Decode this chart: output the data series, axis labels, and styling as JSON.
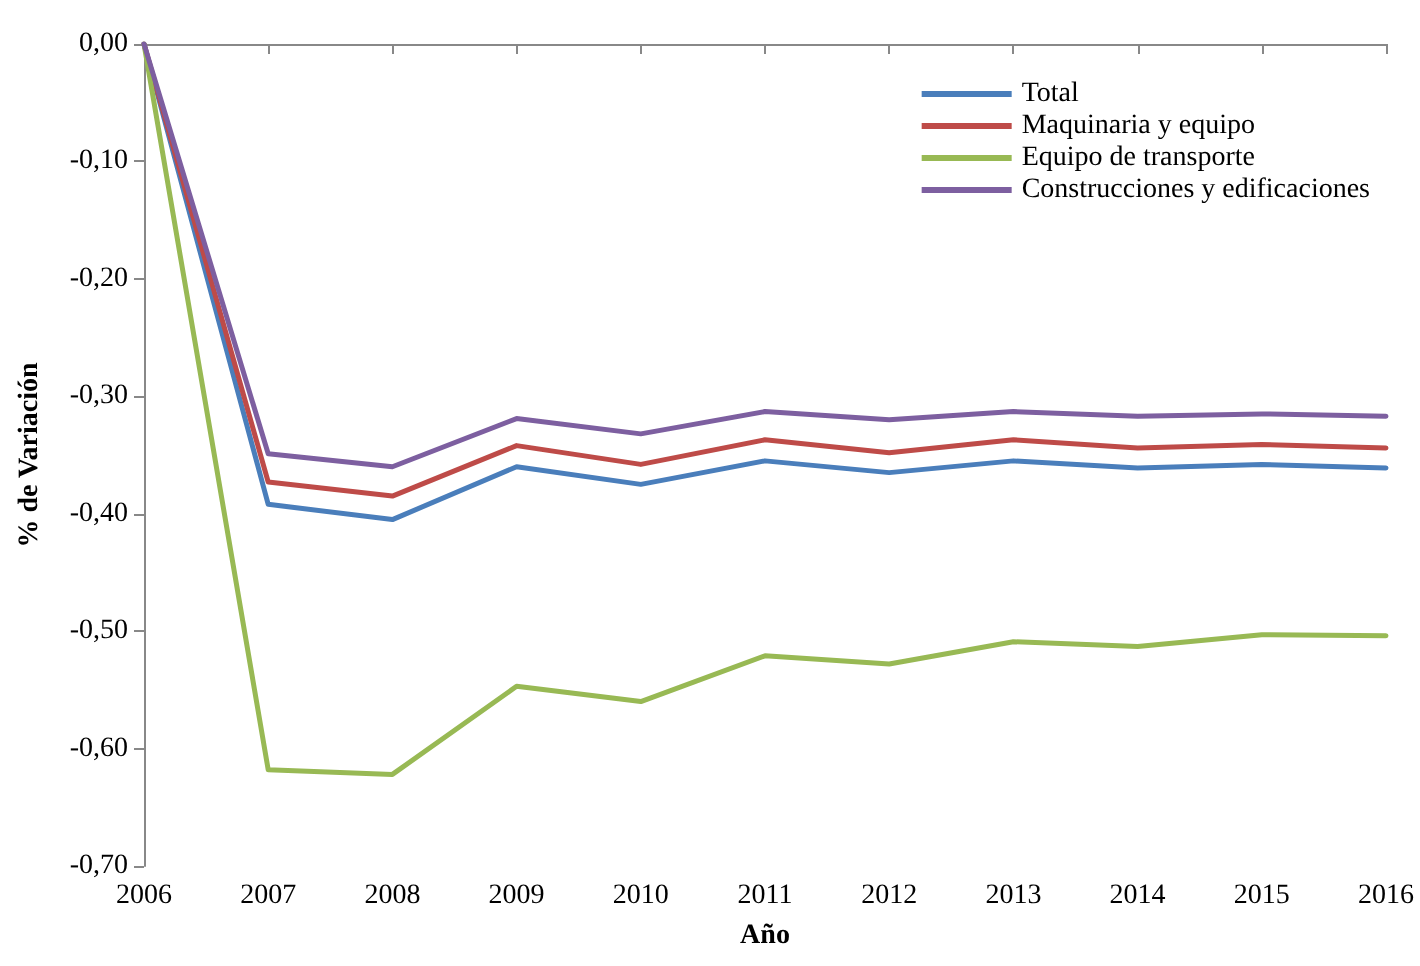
{
  "chart_data": {
    "type": "line",
    "xlabel": "Año",
    "ylabel": "% de Variación",
    "categories": [
      "2006",
      "2007",
      "2008",
      "2009",
      "2010",
      "2011",
      "2012",
      "2013",
      "2014",
      "2015",
      "2016"
    ],
    "series": [
      {
        "name": "Total",
        "color": "#4a7ebb",
        "values": [
          0,
          -0.392,
          -0.405,
          -0.36,
          -0.375,
          -0.355,
          -0.365,
          -0.355,
          -0.361,
          -0.358,
          -0.361
        ]
      },
      {
        "name": "Maquinaria y equipo",
        "color": "#be4b48",
        "values": [
          0,
          -0.373,
          -0.385,
          -0.342,
          -0.358,
          -0.337,
          -0.348,
          -0.337,
          -0.344,
          -0.341,
          -0.344
        ]
      },
      {
        "name": "Equipo de transporte",
        "color": "#98b954",
        "values": [
          0,
          -0.618,
          -0.622,
          -0.547,
          -0.56,
          -0.521,
          -0.528,
          -0.509,
          -0.513,
          -0.503,
          -0.504
        ]
      },
      {
        "name": "Construcciones y edificaciones",
        "color": "#7d5fa0",
        "values": [
          0,
          -0.349,
          -0.36,
          -0.319,
          -0.332,
          -0.313,
          -0.32,
          -0.313,
          -0.317,
          -0.315,
          -0.317
        ]
      }
    ],
    "ylim": [
      -0.7,
      0
    ],
    "yticks": [
      {
        "value": -0.7,
        "label": "-0,70"
      },
      {
        "value": -0.6,
        "label": "-0,60"
      },
      {
        "value": -0.5,
        "label": "-0,50"
      },
      {
        "value": -0.4,
        "label": "-0,40"
      },
      {
        "value": -0.3,
        "label": "-0,30"
      },
      {
        "value": -0.2,
        "label": "-0,20"
      },
      {
        "value": -0.1,
        "label": "-0,10"
      },
      {
        "value": 0,
        "label": "0,00"
      }
    ],
    "grid": false,
    "legend": "top right",
    "marker": "none",
    "line_style": "solid"
  }
}
